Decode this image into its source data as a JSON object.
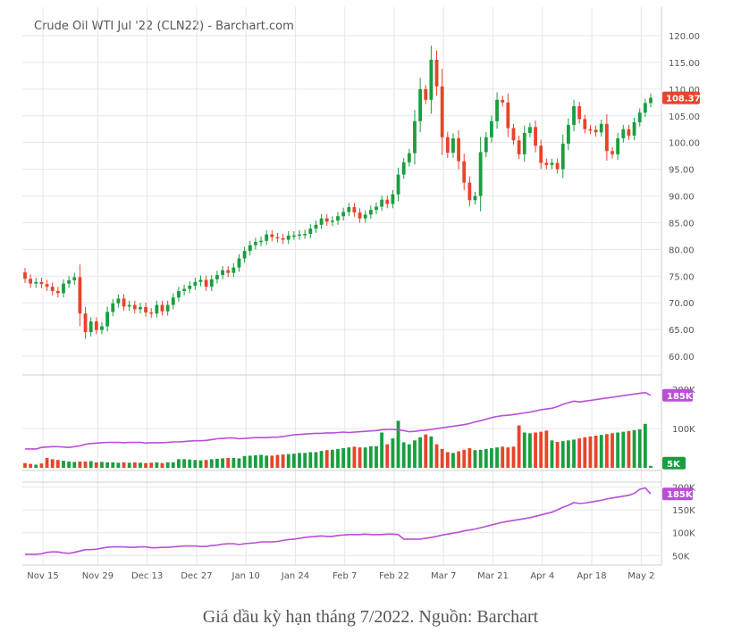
{
  "title": "Crude Oil WTI Jul '22 (CLN22) - Barchart.com",
  "caption": "Giá dầu kỳ hạn tháng 7/2022. Nguồn: Barchart",
  "colors": {
    "up": "#1a9e3f",
    "down": "#e8442a",
    "line": "#b84fd6",
    "grid": "#e6e6e6",
    "axis_text": "#555555",
    "last_price_bg": "#e8442a",
    "badge_bg": "#b84fd6",
    "vol_badge_bg": "#1a9e3f"
  },
  "chart_data": [
    {
      "type": "candlestick",
      "x_ticks": [
        "Nov 15",
        "Nov 29",
        "Dec 13",
        "Dec 27",
        "Jan 10",
        "Jan 24",
        "Feb 7",
        "Feb 22",
        "Mar 7",
        "Mar 21",
        "Apr 4",
        "Apr 18",
        "May 2"
      ],
      "y_ticks": [
        "120.00",
        "115.00",
        "110.00",
        "105.00",
        "100.00",
        "95.00",
        "90.00",
        "85.00",
        "80.00",
        "75.00",
        "70.00",
        "65.00",
        "60.00"
      ],
      "ylim": [
        58,
        121
      ],
      "last_price": "108.37",
      "close": [
        74.5,
        73.6,
        73.9,
        73.5,
        73.0,
        72.2,
        71.8,
        73.6,
        74.2,
        74.8,
        68.0,
        64.5,
        66.5,
        64.9,
        65.6,
        68.3,
        69.9,
        70.8,
        69.3,
        69.6,
        68.8,
        69.2,
        68.2,
        68.0,
        69.6,
        68.4,
        69.6,
        71.0,
        72.2,
        72.6,
        73.2,
        73.9,
        74.3,
        73.0,
        74.4,
        75.2,
        76.1,
        75.6,
        76.6,
        78.3,
        79.7,
        80.8,
        81.4,
        81.6,
        82.8,
        82.3,
        82.1,
        81.8,
        82.6,
        82.6,
        82.8,
        82.9,
        83.9,
        84.6,
        85.8,
        85.2,
        85.4,
        86.2,
        87.0,
        87.9,
        86.9,
        85.8,
        86.5,
        87.4,
        88.0,
        89.3,
        88.5,
        90.3,
        94.0,
        96.3,
        98.0,
        104.0,
        110.0,
        108.0,
        115.5,
        110.5,
        101.0,
        98.1,
        100.8,
        96.5,
        92.5,
        89.2,
        90.0,
        98.2,
        101.0,
        104.0,
        108.0,
        107.5,
        102.7,
        100.4,
        97.8,
        101.8,
        102.9,
        99.4,
        96.2,
        95.8,
        96.2,
        95.0,
        99.8,
        103.3,
        106.8,
        104.4,
        102.5,
        102.4,
        101.9,
        103.5,
        98.4,
        97.8,
        100.8,
        102.5,
        101.3,
        103.8,
        105.6,
        107.4,
        108.37
      ],
      "volume_ticks": [
        "200K",
        "100K"
      ],
      "volume_badges": [
        "185K",
        "5K"
      ],
      "volume_k": [
        12,
        10,
        8,
        11,
        25,
        22,
        20,
        18,
        16,
        15,
        16,
        16,
        17,
        14,
        15,
        14,
        14,
        13,
        14,
        13,
        14,
        13,
        12,
        13,
        14,
        12,
        14,
        14,
        22,
        22,
        21,
        20,
        19,
        20,
        22,
        23,
        24,
        25,
        25,
        24,
        30,
        31,
        32,
        33,
        31,
        31,
        33,
        34,
        35,
        36,
        38,
        38,
        40,
        40,
        43,
        45,
        46,
        48,
        50,
        52,
        54,
        52,
        52,
        55,
        55,
        90,
        60,
        75,
        120,
        65,
        60,
        70,
        78,
        85,
        80,
        60,
        48,
        40,
        38,
        42,
        46,
        50,
        45,
        46,
        48,
        50,
        52,
        54,
        52,
        54,
        108,
        90,
        88,
        90,
        92,
        95,
        70,
        66,
        68,
        70,
        72,
        75,
        78,
        80,
        82,
        84,
        86,
        88,
        90,
        92,
        94,
        96,
        98,
        112,
        5
      ],
      "volume_avg_k": [
        48,
        48,
        48,
        52,
        53,
        54,
        54,
        53,
        52,
        54,
        56,
        60,
        62,
        63,
        64,
        65,
        65,
        65,
        64,
        65,
        65,
        65,
        63,
        64,
        64,
        64,
        65,
        66,
        66,
        67,
        68,
        69,
        69,
        70,
        72,
        74,
        75,
        76,
        76,
        74,
        75,
        76,
        77,
        77,
        77,
        78,
        78,
        80,
        82,
        84,
        85,
        86,
        87,
        88,
        88,
        89,
        89,
        90,
        91,
        90,
        91,
        92,
        93,
        94,
        95,
        97,
        98,
        98,
        97,
        95,
        92,
        93,
        95,
        96,
        98,
        100,
        102,
        104,
        106,
        108,
        110,
        113,
        117,
        120,
        124,
        128,
        131,
        133,
        134,
        136,
        138,
        140,
        142,
        145,
        148,
        150,
        152,
        156,
        162,
        166,
        170,
        168,
        170,
        172,
        174,
        176,
        178,
        180,
        182,
        184,
        186,
        188,
        190,
        192,
        185
      ],
      "open_interest_ticks": [
        "200K",
        "185K",
        "150K",
        "100K",
        "50K"
      ],
      "open_interest_k": [
        53,
        53,
        53,
        54,
        57,
        58,
        58,
        56,
        55,
        57,
        60,
        63,
        63,
        64,
        66,
        68,
        69,
        69,
        69,
        68,
        68,
        69,
        69,
        67,
        67,
        68,
        68,
        69,
        70,
        71,
        71,
        71,
        70,
        70,
        72,
        73,
        75,
        76,
        76,
        74,
        76,
        77,
        78,
        80,
        80,
        80,
        81,
        83,
        85,
        86,
        88,
        90,
        91,
        92,
        93,
        92,
        92,
        94,
        95,
        96,
        96,
        96,
        97,
        96,
        96,
        96,
        97,
        97,
        96,
        86,
        86,
        86,
        86,
        88,
        90,
        92,
        95,
        97,
        99,
        101,
        104,
        106,
        108,
        111,
        114,
        117,
        120,
        123,
        125,
        127,
        129,
        131,
        133,
        136,
        139,
        142,
        145,
        150,
        156,
        160,
        166,
        164,
        165,
        167,
        169,
        171,
        174,
        176,
        178,
        180,
        182,
        186,
        195,
        198,
        185
      ]
    }
  ]
}
